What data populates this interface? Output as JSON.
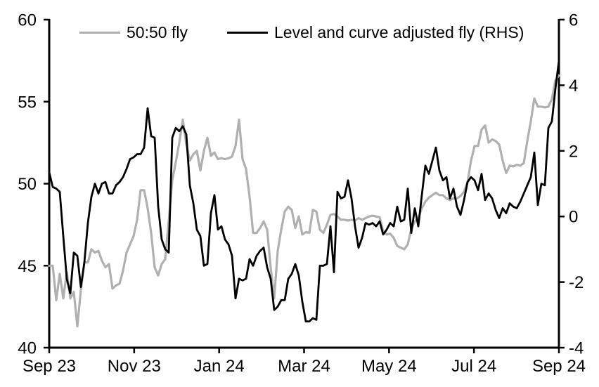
{
  "chart_data": {
    "type": "line",
    "title": "",
    "legend_position": "top",
    "grid": false,
    "background_color": "#ffffff",
    "axis_color": "#000000",
    "x_axis": {
      "labels": [
        "Sep 23",
        "Nov 23",
        "Jan 24",
        "Mar 24",
        "May 24",
        "Jul 24",
        "Sep 24"
      ],
      "label_months": [
        0,
        2,
        4,
        6,
        8,
        10,
        12
      ],
      "range_months": [
        0,
        12
      ]
    },
    "left_axis": {
      "ticks": [
        60,
        55,
        50,
        45,
        40
      ],
      "range": [
        40,
        60
      ]
    },
    "right_axis": {
      "ticks": [
        6,
        4,
        2,
        0,
        -2,
        -4
      ],
      "range": [
        -4,
        6
      ]
    },
    "series": [
      {
        "name": "50:50 fly",
        "axis": "left",
        "color": "#b0b0b0",
        "values": [
          45.0,
          45.0,
          42.9,
          44.5,
          43.0,
          44.6,
          43.0,
          43.4,
          41.3,
          43.5,
          45.2,
          45.2,
          46.0,
          45.8,
          45.9,
          45.3,
          44.9,
          45.1,
          43.6,
          43.8,
          43.9,
          44.7,
          45.8,
          46.3,
          46.8,
          47.8,
          49.6,
          49.6,
          48.5,
          47.0,
          44.9,
          44.4,
          45.1,
          45.4,
          47.7,
          50.2,
          51.3,
          52.5,
          53.9,
          52.4,
          51.4,
          51.8,
          52.0,
          50.8,
          52.0,
          52.8,
          51.7,
          51.9,
          51.5,
          51.55,
          51.5,
          51.55,
          51.65,
          52.3,
          53.9,
          51.5,
          50.9,
          49.2,
          47.0,
          47.0,
          47.3,
          47.7,
          47.2,
          44.9,
          43.0,
          45.9,
          47.2,
          48.3,
          48.6,
          48.4,
          47.3,
          48.0,
          46.9,
          47.05,
          47.0,
          48.4,
          48.3,
          47.2,
          47.0,
          47.5,
          48.1,
          48.15,
          48.0,
          47.8,
          47.8,
          47.75,
          47.8,
          47.75,
          47.9,
          47.8,
          47.9,
          48.0,
          48.05,
          48.0,
          47.95,
          47.1,
          46.9,
          46.95,
          46.7,
          46.2,
          46.1,
          46.0,
          46.3,
          47.25,
          47.7,
          47.9,
          48.5,
          48.9,
          49.15,
          49.3,
          49.45,
          49.3,
          49.3,
          49.1,
          49.0,
          49.1,
          49.1,
          49.25,
          49.5,
          50.1,
          51.4,
          52.3,
          52.3,
          53.3,
          53.55,
          52.5,
          52.7,
          52.6,
          52.4,
          51.4,
          50.65,
          51.1,
          51.05,
          51.15,
          51.1,
          51.25,
          52.6,
          53.8,
          55.2,
          54.7,
          54.7,
          54.65,
          54.7,
          55.15,
          56.3,
          56.6
        ]
      },
      {
        "name": "Level and curve adjusted fly (RHS)",
        "axis": "right",
        "color": "#000000",
        "values": [
          1.35,
          0.9,
          0.85,
          0.75,
          -0.6,
          -1.9,
          -2.35,
          -1.1,
          -1.2,
          -2.15,
          -1.4,
          -0.2,
          0.6,
          1.0,
          0.7,
          1.0,
          1.05,
          0.7,
          0.7,
          0.95,
          1.05,
          1.2,
          1.45,
          1.75,
          1.8,
          1.9,
          1.9,
          2.1,
          3.3,
          2.45,
          2.4,
          0.3,
          -0.7,
          -1.0,
          -1.1,
          2.4,
          2.7,
          2.6,
          2.75,
          2.5,
          0.95,
          0.4,
          -0.4,
          -0.6,
          -1.5,
          -1.45,
          0.1,
          0.65,
          -0.4,
          -0.3,
          -0.7,
          -0.85,
          -1.2,
          -2.5,
          -1.9,
          -1.95,
          -1.9,
          -1.3,
          -1.5,
          -1.2,
          -1.05,
          -0.95,
          -1.55,
          -1.9,
          -2.85,
          -2.75,
          -2.55,
          -2.55,
          -1.9,
          -1.75,
          -1.45,
          -1.8,
          -2.6,
          -3.2,
          -3.2,
          -3.1,
          -3.15,
          -1.5,
          -1.5,
          -1.45,
          -0.3,
          -1.7,
          0.75,
          0.55,
          0.6,
          1.1,
          0.55,
          -0.3,
          -0.95,
          -0.65,
          -0.2,
          -0.25,
          -0.2,
          -0.3,
          -0.15,
          -0.55,
          -0.4,
          -0.2,
          -0.3,
          0.3,
          -0.15,
          -0.1,
          0.85,
          -0.5,
          0.25,
          -0.3,
          0.65,
          1.55,
          1.3,
          1.7,
          2.1,
          1.4,
          1.1,
          1.2,
          0.55,
          0.85,
          0.3,
          0.05,
          0.5,
          1.05,
          1.2,
          1.1,
          0.8,
          1.3,
          0.5,
          0.7,
          0.55,
          0.2,
          -0.05,
          0.25,
          0.1,
          0.4,
          0.3,
          0.25,
          0.45,
          0.7,
          0.95,
          1.2,
          1.95,
          0.35,
          1.0,
          0.95,
          2.7,
          2.9,
          3.9,
          4.75
        ]
      }
    ]
  }
}
